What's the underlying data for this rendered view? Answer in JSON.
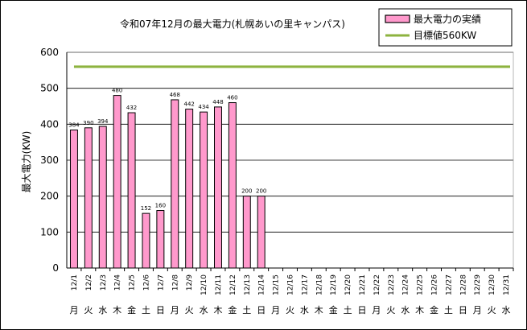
{
  "chart_data": {
    "type": "bar",
    "title": "令和07年12月の最大電力(札幌あいの里キャンパス)",
    "ylabel": "最大電力(KW)",
    "ylim": [
      0,
      600
    ],
    "yticks": [
      0,
      100,
      200,
      300,
      400,
      500,
      600
    ],
    "grid": true,
    "legend_position": "top-right",
    "categories": [
      "12/1",
      "12/2",
      "12/3",
      "12/4",
      "12/5",
      "12/6",
      "12/7",
      "12/8",
      "12/9",
      "12/10",
      "12/11",
      "12/12",
      "12/13",
      "12/14",
      "12/15",
      "12/16",
      "12/17",
      "12/18",
      "12/19",
      "12/20",
      "12/21",
      "12/22",
      "12/23",
      "12/24",
      "12/25",
      "12/26",
      "12/27",
      "12/28",
      "12/29",
      "12/30",
      "12/31"
    ],
    "weekdays": [
      "月",
      "火",
      "水",
      "木",
      "金",
      "土",
      "日",
      "月",
      "火",
      "水",
      "木",
      "金",
      "土",
      "日",
      "月",
      "火",
      "水",
      "木",
      "金",
      "土",
      "日",
      "月",
      "火",
      "水",
      "木",
      "金",
      "土",
      "日",
      "月",
      "火",
      "水"
    ],
    "series": [
      {
        "name": "最大電力の実績",
        "color": "#ff99cc",
        "values": [
          384,
          390,
          394,
          480,
          432,
          152,
          160,
          468,
          442,
          434,
          448,
          460,
          200,
          200,
          null,
          null,
          null,
          null,
          null,
          null,
          null,
          null,
          null,
          null,
          null,
          null,
          null,
          null,
          null,
          null,
          null
        ]
      }
    ],
    "target": {
      "name": "目標値560KW",
      "value": 560,
      "color": "#8db33f"
    }
  }
}
